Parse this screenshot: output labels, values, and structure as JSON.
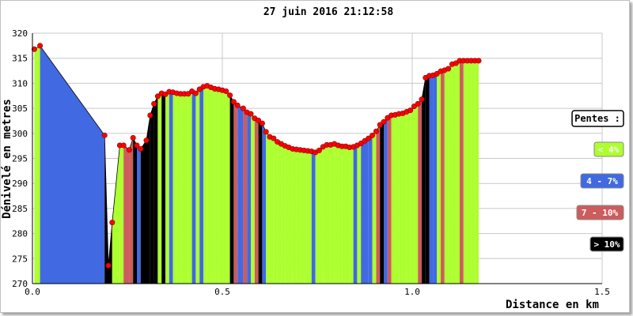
{
  "chart_data": {
    "type": "area",
    "title": "27 juin 2016 21:12:58",
    "xlabel": "Distance en km",
    "ylabel": "Dénivelé en metres",
    "xlim": [
      0,
      1.5
    ],
    "ylim": [
      270,
      320
    ],
    "xticks": [
      "0.0",
      "0.5",
      "1.0",
      "1.5"
    ],
    "yticks": [
      "270",
      "275",
      "280",
      "285",
      "290",
      "295",
      "300",
      "305",
      "310",
      "315",
      "320"
    ],
    "grid": true,
    "legend": {
      "title": "Pentes :",
      "placement": "right",
      "entries": [
        {
          "label": "< 4%",
          "color": "#adff2f",
          "text_color": "#ffffff"
        },
        {
          "label": "4 - 7%",
          "color": "#4169e1",
          "text_color": "#ffffff"
        },
        {
          "label": "7 - 10%",
          "color": "#cd5c5c",
          "text_color": "#ffffff"
        },
        {
          "label": "> 10%",
          "color": "#000000",
          "text_color": "#ffffff"
        }
      ]
    },
    "series": [
      {
        "x": [
          0.005,
          0.02,
          0.19,
          0.2,
          0.21,
          0.23,
          0.24,
          0.255,
          0.265,
          0.275,
          0.285,
          0.3,
          0.31,
          0.32,
          0.33,
          0.34,
          0.35,
          0.36,
          0.37,
          0.38,
          0.39,
          0.4,
          0.41,
          0.42,
          0.43,
          0.44,
          0.45,
          0.46,
          0.47,
          0.48,
          0.49,
          0.5,
          0.51,
          0.52,
          0.53,
          0.54,
          0.555,
          0.565,
          0.575,
          0.585,
          0.595,
          0.605,
          0.615,
          0.625,
          0.635,
          0.645,
          0.655,
          0.665,
          0.675,
          0.685,
          0.695,
          0.705,
          0.715,
          0.725,
          0.735,
          0.745,
          0.755,
          0.765,
          0.775,
          0.785,
          0.795,
          0.805,
          0.815,
          0.825,
          0.835,
          0.845,
          0.855,
          0.865,
          0.875,
          0.885,
          0.895,
          0.905,
          0.915,
          0.925,
          0.935,
          0.945,
          0.955,
          0.965,
          0.975,
          0.985,
          0.995,
          1.005,
          1.015,
          1.025,
          1.035,
          1.045,
          1.055,
          1.065,
          1.075,
          1.085,
          1.095,
          1.105,
          1.115,
          1.125,
          1.135,
          1.145,
          1.155,
          1.165,
          1.175
        ],
        "y": [
          316.8,
          317.5,
          299.6,
          273.6,
          282.2,
          297.6,
          297.6,
          296.7,
          299.1,
          297.6,
          296.9,
          298.6,
          303.6,
          305.9,
          307.4,
          308.0,
          307.8,
          308.3,
          308.2,
          308.0,
          307.9,
          307.9,
          307.9,
          308.4,
          308.0,
          308.8,
          309.3,
          309.5,
          309.2,
          308.9,
          308.8,
          308.6,
          308.4,
          307.6,
          306.3,
          305.6,
          305.0,
          304.2,
          303.9,
          303.0,
          302.6,
          302.0,
          300.3,
          299.3,
          299.0,
          298.3,
          297.9,
          297.5,
          297.2,
          296.9,
          296.8,
          296.7,
          296.6,
          296.5,
          296.4,
          296.2,
          296.6,
          297.3,
          297.7,
          297.7,
          297.9,
          297.6,
          297.4,
          297.4,
          297.2,
          297.3,
          297.6,
          298.0,
          298.5,
          299.0,
          299.6,
          300.4,
          301.7,
          302.3,
          303.1,
          303.6,
          303.7,
          303.9,
          304.0,
          304.3,
          304.6,
          305.4,
          305.9,
          306.8,
          311.1,
          311.5,
          311.6,
          311.9,
          312.4,
          312.6,
          312.9,
          313.8,
          314.0,
          314.5,
          314.5,
          314.5,
          314.5,
          314.5,
          314.5
        ],
        "segment_classes": [
          "<4",
          "4-7",
          ">10",
          ">10",
          "<4",
          "<4",
          "7-10",
          "7-10",
          ">10",
          "4-7",
          ">10",
          ">10",
          ">10",
          ">10",
          "<4",
          ">10",
          "<4",
          "4-7",
          "<4",
          "<4",
          "<4",
          "<4",
          "<4",
          "4-7",
          "<4",
          "4-7",
          "<4",
          "<4",
          "<4",
          "<4",
          "<4",
          "<4",
          "<4",
          ">10",
          "7-10",
          "4-7",
          "7-10",
          "4-7",
          "<4",
          "7-10",
          ">10",
          "4-7",
          "<4",
          "<4",
          "<4",
          "<4",
          "<4",
          "<4",
          "<4",
          "<4",
          "<4",
          "<4",
          "<4",
          "<4",
          "4-7",
          "<4",
          "<4",
          "<4",
          "<4",
          "<4",
          "<4",
          "<4",
          "<4",
          "<4",
          "<4",
          "4-7",
          "<4",
          "4-7",
          "4-7",
          "4-7",
          "<4",
          "7-10",
          ">10",
          "4-7",
          "7-10",
          "<4",
          "<4",
          "<4",
          "<4",
          "<4",
          "<4",
          "<4",
          "7-10",
          ">10",
          ">10",
          "4-7",
          "4-7",
          "<4",
          "7-10",
          "<4",
          "<4",
          "<4",
          "<4",
          "7-10",
          "<4",
          "<4",
          "<4",
          "<4"
        ]
      }
    ]
  },
  "colors": {
    "grid": "#c8c8c8",
    "plot_bg": "#ffffff",
    "marker": "#ff0000",
    "marker_stroke": "#8b0000"
  }
}
